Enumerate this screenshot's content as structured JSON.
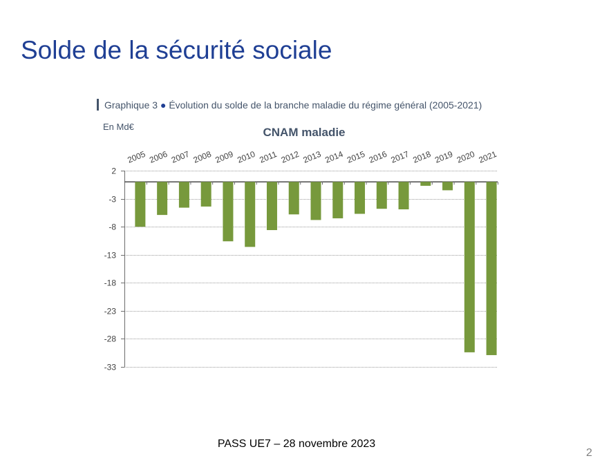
{
  "slide": {
    "title": "Solde de la sécurité sociale",
    "footer": "PASS UE7 – 28 novembre 2023",
    "page_number": "2"
  },
  "figure": {
    "caption_prefix": "Graphique 3",
    "caption_bullet": "●",
    "caption_text": "Évolution du solde de la branche maladie du régime général (2005-2021)",
    "unit": "En Md€"
  },
  "colors": {
    "bar": "#77993c",
    "title": "#1f3f94"
  },
  "chart_data": {
    "type": "bar",
    "title": "CNAM maladie",
    "xlabel": "",
    "ylabel": "En Md€",
    "categories": [
      "2005",
      "2006",
      "2007",
      "2008",
      "2009",
      "2010",
      "2011",
      "2012",
      "2013",
      "2014",
      "2015",
      "2016",
      "2017",
      "2018",
      "2019",
      "2020",
      "2021"
    ],
    "values": [
      -8.0,
      -5.9,
      -4.6,
      -4.4,
      -10.6,
      -11.6,
      -8.6,
      -5.8,
      -6.8,
      -6.5,
      -5.7,
      -4.8,
      -4.9,
      -0.7,
      -1.5,
      -30.4,
      -30.9
    ],
    "ylim": [
      -33,
      2
    ],
    "yticks": [
      2,
      -3,
      -8,
      -13,
      -18,
      -23,
      -28,
      -33
    ],
    "grid": true,
    "legend": "none"
  }
}
